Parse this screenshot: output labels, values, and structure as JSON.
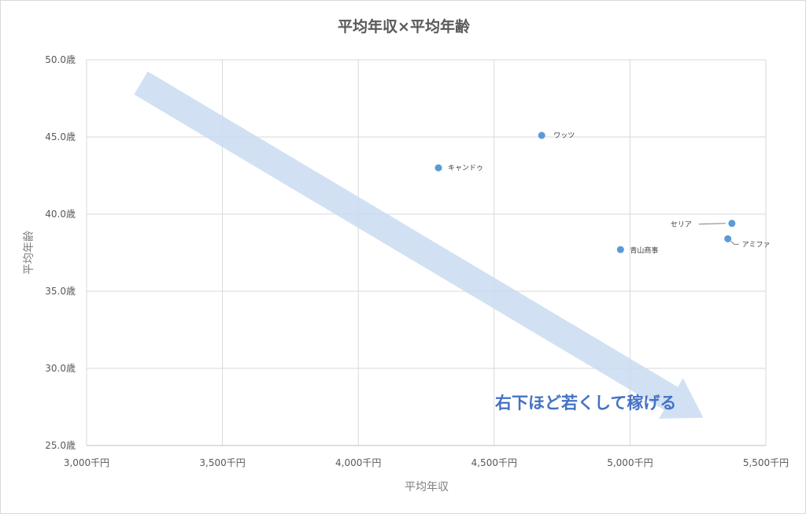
{
  "chart_data": {
    "type": "scatter",
    "title": "平均年収×平均年齢",
    "xlabel": "平均年収",
    "ylabel": "平均年齢",
    "xlim": [
      3000,
      5500
    ],
    "ylim": [
      25.0,
      50.0
    ],
    "x_ticks": [
      3000,
      3500,
      4000,
      4500,
      5000,
      5500
    ],
    "x_tick_labels": [
      "3,000千円",
      "3,500千円",
      "4,000千円",
      "4,500千円",
      "5,000千円",
      "5,500千円"
    ],
    "y_ticks": [
      25,
      30,
      35,
      40,
      45,
      50
    ],
    "y_tick_labels": [
      "25.0歳",
      "30.0歳",
      "35.0歳",
      "40.0歳",
      "45.0歳",
      "50.0歳"
    ],
    "grid": true,
    "series": [
      {
        "points": [
          {
            "label": "キャンドゥ",
            "x": 4295,
            "y": 43.0
          },
          {
            "label": "ワッツ",
            "x": 4675,
            "y": 45.1
          },
          {
            "label": "セリア",
            "x": 5375,
            "y": 39.4
          },
          {
            "label": "アミファ",
            "x": 5360,
            "y": 38.4
          },
          {
            "label": "青山商事",
            "x": 4965,
            "y": 37.7
          }
        ]
      }
    ],
    "annotation": {
      "text": "右下ほど若くして稼げる",
      "arrow_from": {
        "x": 3200,
        "y": 48.5
      },
      "arrow_to": {
        "x": 5270,
        "y": 26.8
      }
    },
    "colors": {
      "marker": "#5b9bd5",
      "arrow": "#c9dcf1",
      "grid": "#d9d9d9",
      "callout": "#4472c4"
    }
  }
}
